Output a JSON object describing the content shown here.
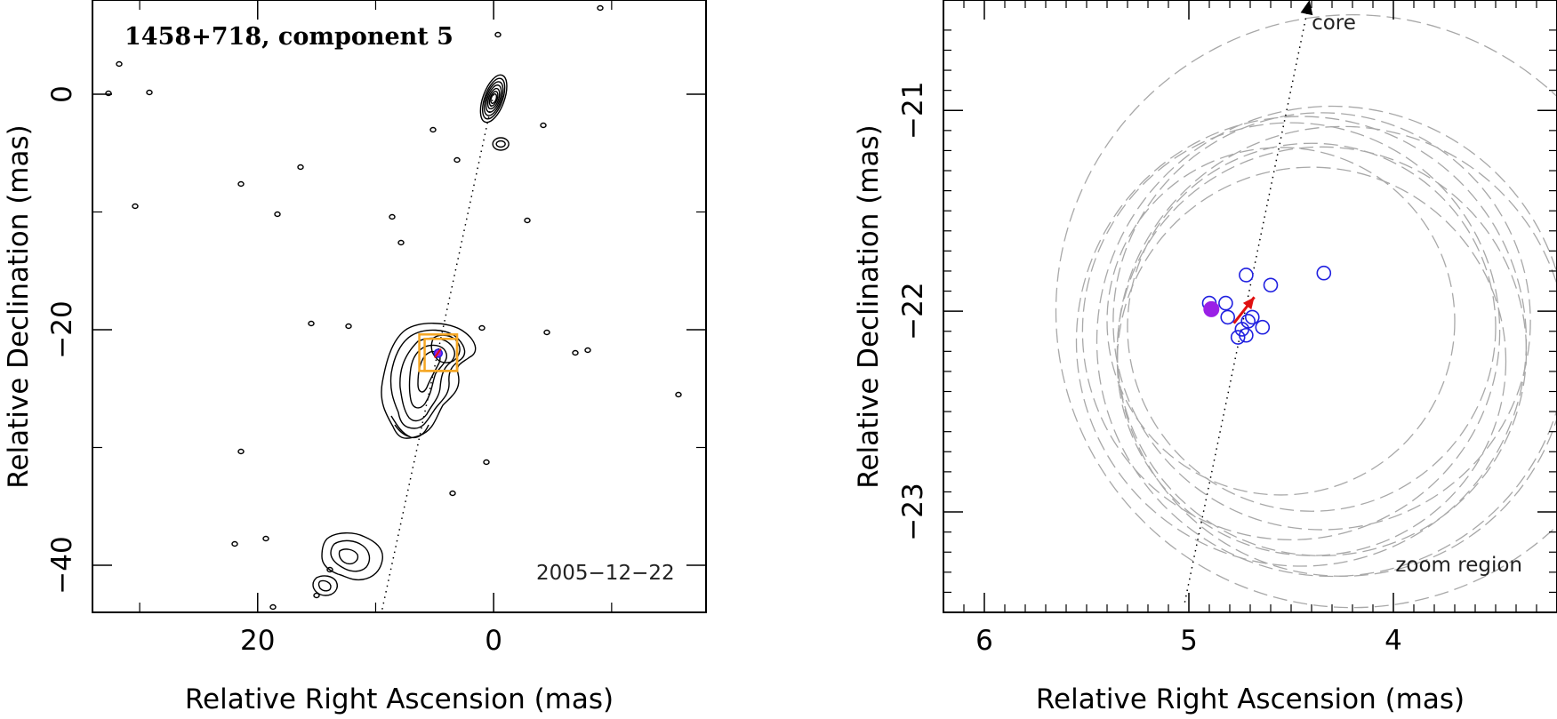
{
  "colors": {
    "frame": "#000000",
    "contour": "#000000",
    "window": "#f5a623",
    "zoom_circles": "#a8a8a8",
    "open_markers": "#2020e0",
    "filled_marker": "#9a20e6",
    "motion_arrow": "#e01010",
    "core_arrow": "#000000"
  },
  "chart_data": [
    {
      "type": "contour",
      "panel": "left",
      "title": "1458+718, component 5",
      "date_label": "2005−12−22",
      "xlabel": "Relative Right Ascension (mas)",
      "ylabel": "Relative Declination (mas)",
      "xlim": [
        34,
        -18
      ],
      "ylim": [
        -44,
        8
      ],
      "xticks": [
        {
          "value": 20,
          "label": "20"
        },
        {
          "value": 0,
          "label": "0"
        }
      ],
      "yticks": [
        {
          "value": 0,
          "label": "0"
        },
        {
          "value": -20,
          "label": "−20"
        },
        {
          "value": -40,
          "label": "−40"
        }
      ],
      "xminor": [
        30,
        10,
        -10
      ],
      "yminor": [
        -10,
        -30
      ],
      "jet_axis": {
        "from": [
          0,
          0
        ],
        "to": [
          9.5,
          -44
        ]
      },
      "core": {
        "x": 0,
        "y": 0
      },
      "component": {
        "x": 4.7,
        "y": -22.0
      },
      "zoom_window": {
        "x_min": 3.1,
        "x_max": 6.3,
        "y_min": -23.5,
        "y_max": -20.4
      }
    },
    {
      "type": "scatter",
      "panel": "right",
      "xlabel": "Relative Right Ascension (mas)",
      "ylabel": "Relative Declination (mas)",
      "xlim": [
        6.2,
        3.2
      ],
      "ylim": [
        -23.5,
        -20.45
      ],
      "xticks": [
        {
          "value": 6,
          "label": "6"
        },
        {
          "value": 5,
          "label": "5"
        },
        {
          "value": 4,
          "label": "4"
        }
      ],
      "yticks": [
        {
          "value": -21,
          "label": "−21"
        },
        {
          "value": -22,
          "label": "−22"
        },
        {
          "value": -23,
          "label": "−23"
        }
      ],
      "core_label": "core",
      "zoom_label": "zoom region",
      "jet_axis": {
        "from": [
          5.02,
          -23.45
        ],
        "to": [
          4.41,
          -20.45
        ]
      },
      "filled_point": {
        "x": 4.89,
        "y": -21.99
      },
      "open_points": [
        {
          "x": 4.9,
          "y": -21.96
        },
        {
          "x": 4.82,
          "y": -21.96
        },
        {
          "x": 4.81,
          "y": -22.03
        },
        {
          "x": 4.74,
          "y": -22.09
        },
        {
          "x": 4.71,
          "y": -22.05
        },
        {
          "x": 4.69,
          "y": -22.03
        },
        {
          "x": 4.72,
          "y": -22.12
        },
        {
          "x": 4.76,
          "y": -22.13
        },
        {
          "x": 4.64,
          "y": -22.08
        },
        {
          "x": 4.72,
          "y": -21.82
        },
        {
          "x": 4.6,
          "y": -21.87
        },
        {
          "x": 4.34,
          "y": -21.81
        }
      ],
      "motion_arrow": {
        "from": [
          4.78,
          -22.06
        ],
        "to": [
          4.68,
          -21.93
        ]
      },
      "uncertainty_circles": [
        {
          "cx": 4.35,
          "cy": -22.05,
          "r": 1.02
        },
        {
          "cx": 4.4,
          "cy": -22.08,
          "r": 0.9
        },
        {
          "cx": 4.5,
          "cy": -22.1,
          "r": 1.02
        },
        {
          "cx": 4.45,
          "cy": -22.15,
          "r": 1.1
        },
        {
          "cx": 4.35,
          "cy": -22.2,
          "r": 1.0
        },
        {
          "cx": 4.3,
          "cy": -22.15,
          "r": 1.15
        },
        {
          "cx": 4.25,
          "cy": -22.2,
          "r": 1.1
        },
        {
          "cx": 4.4,
          "cy": -22.25,
          "r": 0.95
        },
        {
          "cx": 4.2,
          "cy": -22.0,
          "r": 1.45
        },
        {
          "cx": 4.55,
          "cy": -22.05,
          "r": 0.85
        }
      ]
    }
  ]
}
